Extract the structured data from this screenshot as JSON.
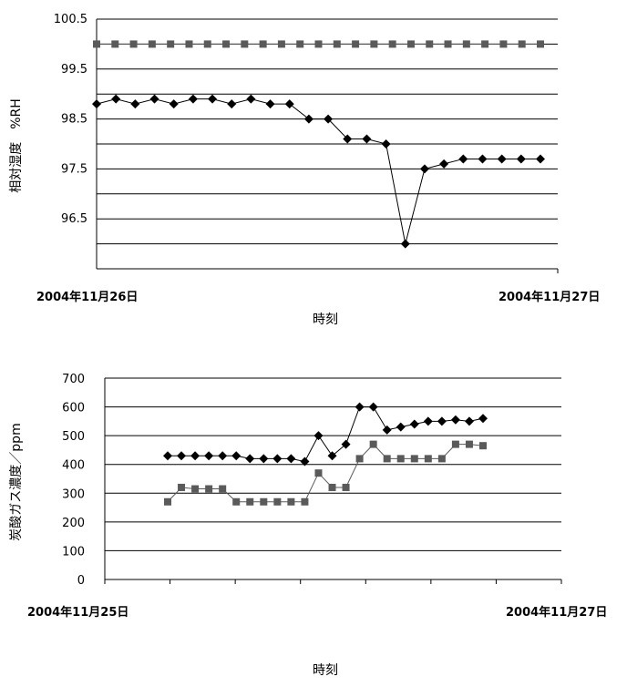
{
  "chart_data": [
    {
      "type": "line",
      "title": "",
      "xlabel": "時刻",
      "ylabel": "相対湿度　%RH",
      "x_tick_labels": [
        "2004年11月26日",
        "2004年11月27日"
      ],
      "y_ticks": [
        "100.5",
        "99.5",
        "98.5",
        "97.5",
        "96.5"
      ],
      "ylim": [
        95.5,
        100.5
      ],
      "grid": true,
      "series": [
        {
          "marker": "square",
          "color": "#5a5a5a",
          "values": [
            100.0,
            100.0,
            100.0,
            100.0,
            100.0,
            100.0,
            100.0,
            100.0,
            100.0,
            100.0,
            100.0,
            100.0,
            100.0,
            100.0,
            100.0,
            100.0,
            100.0,
            100.0,
            100.0,
            100.0,
            100.0,
            100.0,
            100.0,
            100.0,
            100.0
          ]
        },
        {
          "marker": "diamond",
          "color": "#000000",
          "values": [
            98.8,
            98.9,
            98.8,
            98.9,
            98.8,
            98.9,
            98.9,
            98.8,
            98.9,
            98.8,
            98.8,
            98.5,
            98.5,
            98.1,
            98.1,
            98.0,
            96.0,
            97.5,
            97.6,
            97.7,
            97.7,
            97.7,
            97.7,
            97.7
          ]
        }
      ]
    },
    {
      "type": "line",
      "title": "",
      "xlabel": "時刻",
      "ylabel": "炭酸ガス濃度／ppm",
      "x_tick_labels": [
        "2004年11月25日",
        "2004年11月27日"
      ],
      "y_ticks": [
        "700",
        "600",
        "500",
        "400",
        "300",
        "200",
        "100",
        "0"
      ],
      "ylim": [
        0,
        700
      ],
      "grid": true,
      "series": [
        {
          "marker": "diamond",
          "color": "#000000",
          "values": [
            430,
            430,
            430,
            430,
            430,
            430,
            420,
            420,
            420,
            420,
            410,
            500,
            430,
            470,
            600,
            600,
            520,
            530,
            540,
            550,
            550,
            555,
            550,
            560
          ]
        },
        {
          "marker": "square",
          "color": "#5a5a5a",
          "values": [
            270,
            320,
            315,
            315,
            315,
            270,
            270,
            270,
            270,
            270,
            270,
            370,
            320,
            320,
            420,
            470,
            420,
            420,
            420,
            420,
            420,
            470,
            470,
            465
          ]
        }
      ]
    }
  ]
}
